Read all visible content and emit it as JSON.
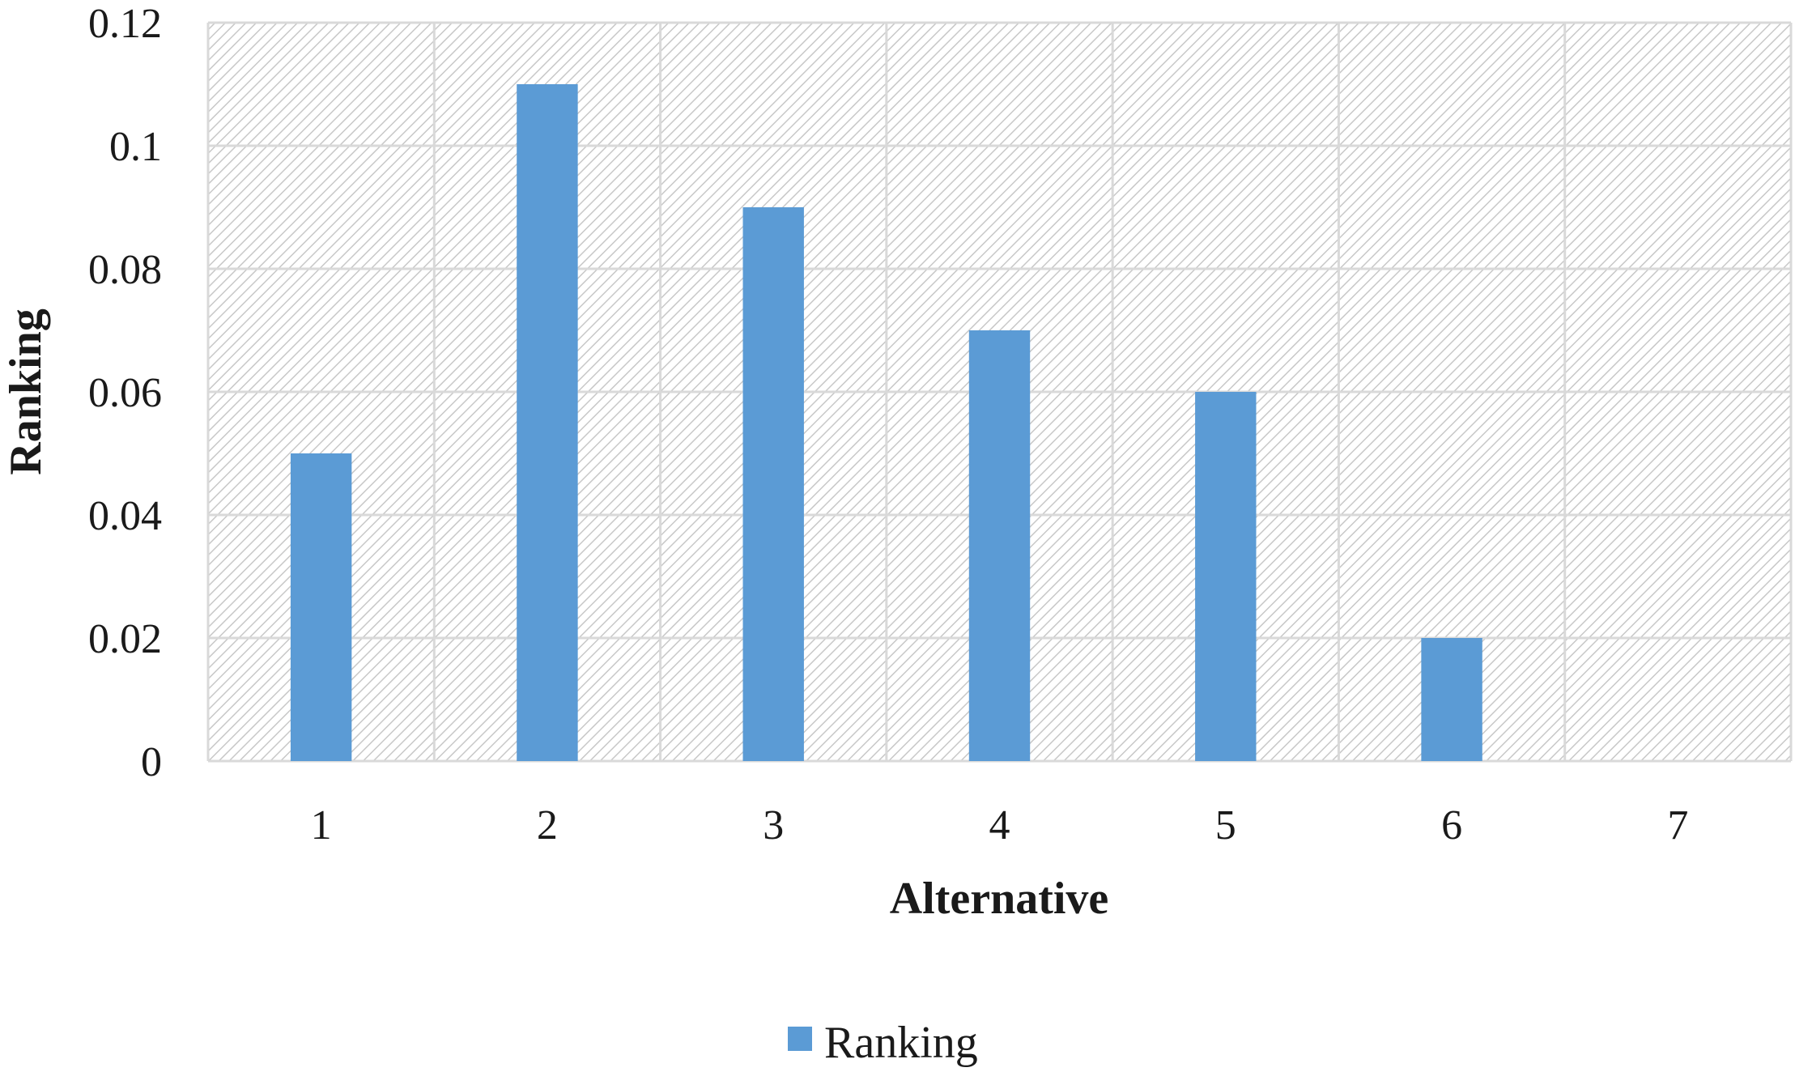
{
  "chart_data": {
    "type": "bar",
    "categories": [
      "1",
      "2",
      "3",
      "4",
      "5",
      "6",
      "7"
    ],
    "series": [
      {
        "name": "Ranking",
        "values": [
          0.05,
          0.11,
          0.09,
          0.07,
          0.06,
          0.02,
          0
        ]
      }
    ],
    "xlabel": "Alternative",
    "ylabel": "Ranking",
    "ylim": [
      0,
      0.12
    ],
    "yticks": [
      "0",
      "0.02",
      "0.04",
      "0.06",
      "0.08",
      "0.1",
      "0.12"
    ],
    "grid": true,
    "plot_background": "hatched",
    "legend_position": "bottom",
    "colors": {
      "bar": "#5b9bd5",
      "grid": "#d9d9d9",
      "hatch": "#c8c8c8"
    }
  }
}
